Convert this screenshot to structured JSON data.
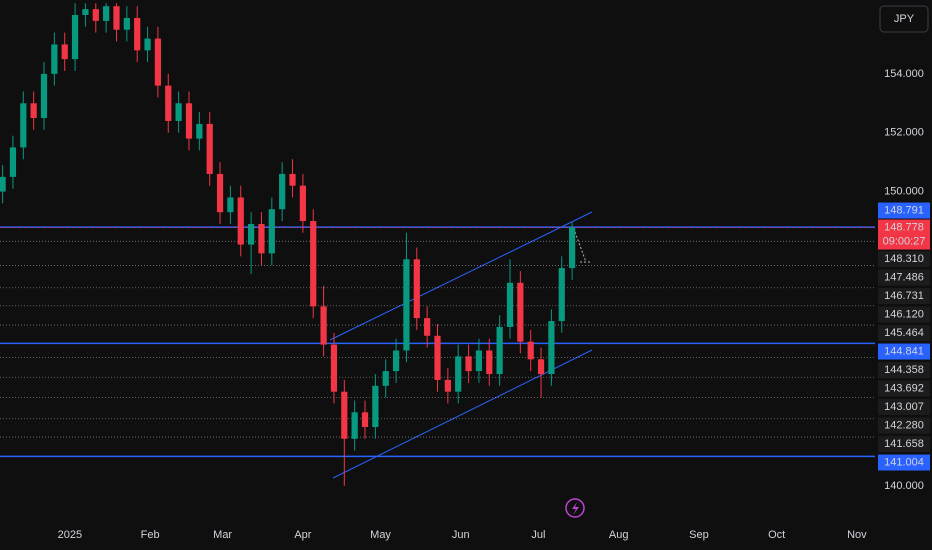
{
  "chart_data": {
    "type": "candlestick",
    "currency": "JPY",
    "up_color": "#089981",
    "down_color": "#f23645",
    "x": [
      -26,
      -22,
      -18,
      -14,
      -10,
      -6,
      -2,
      2,
      6,
      10,
      14,
      18,
      22,
      26,
      30,
      34,
      38,
      42,
      46,
      50,
      54,
      58,
      62,
      66,
      70,
      74,
      78,
      82,
      86,
      90,
      94,
      98,
      102,
      106,
      110,
      114,
      118,
      122,
      126,
      130,
      134,
      138,
      142,
      146,
      150,
      154,
      158,
      162,
      166,
      170,
      174,
      178,
      182,
      186,
      190,
      194
    ],
    "open": [
      150.0,
      150.5,
      151.5,
      153.0,
      152.5,
      154.0,
      155.0,
      154.5,
      156.0,
      156.2,
      155.8,
      156.3,
      155.5,
      155.9,
      154.8,
      155.2,
      153.6,
      152.4,
      153.0,
      151.8,
      152.3,
      150.6,
      149.3,
      149.8,
      148.2,
      148.9,
      147.9,
      149.4,
      150.6,
      150.2,
      149.0,
      146.1,
      144.8,
      143.2,
      141.6,
      142.5,
      142.0,
      143.4,
      143.9,
      144.6,
      147.7,
      145.7,
      145.1,
      143.6,
      143.2,
      144.4,
      143.9,
      144.6,
      143.8,
      145.4,
      146.9,
      144.9,
      144.3,
      143.8,
      145.6,
      147.4
    ],
    "high": [
      150.9,
      151.9,
      153.4,
      153.4,
      154.4,
      155.4,
      155.4,
      156.4,
      156.4,
      156.4,
      156.4,
      156.4,
      156.3,
      156.3,
      155.6,
      155.6,
      154.0,
      153.4,
      153.4,
      152.7,
      152.7,
      151.0,
      150.2,
      150.2,
      149.3,
      149.3,
      149.8,
      151.0,
      151.1,
      150.6,
      149.4,
      146.8,
      145.2,
      143.6,
      142.9,
      142.9,
      143.8,
      144.3,
      145.0,
      148.6,
      148.1,
      146.1,
      145.5,
      144.0,
      144.8,
      144.8,
      145.0,
      145.0,
      145.8,
      147.7,
      147.3,
      145.3,
      144.7,
      146.0,
      147.8,
      148.95
    ],
    "low": [
      149.6,
      150.1,
      151.1,
      152.1,
      152.1,
      153.6,
      154.1,
      154.1,
      155.6,
      155.4,
      155.4,
      155.1,
      155.1,
      154.4,
      154.4,
      153.2,
      152.0,
      152.0,
      151.4,
      151.4,
      150.2,
      148.9,
      148.9,
      147.8,
      147.2,
      147.5,
      147.5,
      149.0,
      149.8,
      148.6,
      145.7,
      144.4,
      142.8,
      140.0,
      141.2,
      141.6,
      141.6,
      143.0,
      143.5,
      144.2,
      145.3,
      144.7,
      143.2,
      142.8,
      142.8,
      143.5,
      143.5,
      143.4,
      143.4,
      145.0,
      144.5,
      143.9,
      143.0,
      143.4,
      145.2,
      147.0
    ],
    "close": [
      150.5,
      151.5,
      153.0,
      152.5,
      154.0,
      155.0,
      154.5,
      156.0,
      156.2,
      155.8,
      156.3,
      155.5,
      155.9,
      154.8,
      155.2,
      153.6,
      152.4,
      153.0,
      151.8,
      152.3,
      150.6,
      149.3,
      149.8,
      148.2,
      148.9,
      147.9,
      149.4,
      150.6,
      150.2,
      149.0,
      146.1,
      144.8,
      143.2,
      141.6,
      142.5,
      142.0,
      143.4,
      143.9,
      144.6,
      147.7,
      145.7,
      145.1,
      143.6,
      143.2,
      144.4,
      143.9,
      144.6,
      143.8,
      145.4,
      146.9,
      144.9,
      144.3,
      143.8,
      145.6,
      147.4,
      148.778
    ],
    "xlim": [
      -27,
      311
    ],
    "ylim": [
      138.84,
      156.51
    ],
    "xticks": [
      {
        "value": 0,
        "label": "2025"
      },
      {
        "value": 31,
        "label": "Feb"
      },
      {
        "value": 59,
        "label": "Mar"
      },
      {
        "value": 90,
        "label": "Apr"
      },
      {
        "value": 120,
        "label": "May"
      },
      {
        "value": 151,
        "label": "Jun"
      },
      {
        "value": 181,
        "label": "Jul"
      },
      {
        "value": 212,
        "label": "Aug"
      },
      {
        "value": 243,
        "label": "Sep"
      },
      {
        "value": 273,
        "label": "Oct"
      },
      {
        "value": 304,
        "label": "Nov"
      }
    ],
    "yticks": [
      {
        "value": 154,
        "label": "154.000"
      },
      {
        "value": 152,
        "label": "152.000"
      },
      {
        "value": 150,
        "label": "150.000"
      },
      {
        "value": 140,
        "label": "140.000"
      }
    ],
    "last_price": {
      "value": 148.778,
      "label": "148.778",
      "countdown": "09:00:27",
      "color": "#f23645"
    },
    "levels": [
      {
        "value": 148.791,
        "label": "148.791",
        "color": "#2962ff"
      },
      {
        "value": 148.31,
        "label": "148.310",
        "color": "#d1d4dc"
      },
      {
        "value": 147.486,
        "label": "147.486",
        "color": "#d1d4dc"
      },
      {
        "value": 146.731,
        "label": "146.731",
        "color": "#d1d4dc"
      },
      {
        "value": 146.12,
        "label": "146.120",
        "color": "#d1d4dc"
      },
      {
        "value": 145.464,
        "label": "145.464",
        "color": "#d1d4dc"
      },
      {
        "value": 144.841,
        "label": "144.841",
        "color": "#2962ff"
      },
      {
        "value": 144.358,
        "label": "144.358",
        "color": "#d1d4dc"
      },
      {
        "value": 143.692,
        "label": "143.692",
        "color": "#d1d4dc"
      },
      {
        "value": 143.007,
        "label": "143.007",
        "color": "#d1d4dc"
      },
      {
        "value": 142.28,
        "label": "142.280",
        "color": "#d1d4dc"
      },
      {
        "value": 141.658,
        "label": "141.658",
        "color": "#d1d4dc"
      },
      {
        "value": 141.004,
        "label": "141.004",
        "color": "#2962ff"
      }
    ]
  }
}
